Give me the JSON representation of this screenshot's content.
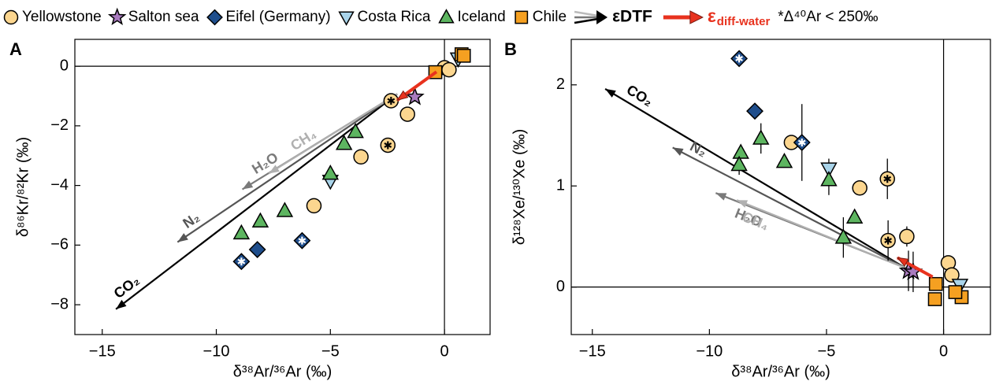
{
  "legend_extra": {
    "dtf": "εDTF",
    "diff_symbol": "ε",
    "diff_sub": "diff-water",
    "star_note": "*Δ⁴⁰Ar < 250‰"
  },
  "chart_data": [
    {
      "type": "scatter",
      "panel_label": "A",
      "xlabel": "δ³⁸Ar/³⁶Ar (‰)",
      "ylabel": "δ⁸⁶Kr/⁸²Kr (‰)",
      "xlim": [
        -16.2,
        2
      ],
      "ylim": [
        -9,
        0.9
      ],
      "xticks": [
        {
          "value": -15,
          "label": "−15"
        },
        {
          "value": -10,
          "label": "−10"
        },
        {
          "value": -5,
          "label": "−5"
        },
        0
      ],
      "yticks": [
        {
          "value": -8,
          "label": "−8"
        },
        {
          "value": -6,
          "label": "−6"
        },
        {
          "value": -4,
          "label": "−4"
        },
        {
          "value": -2,
          "label": "−2"
        },
        0
      ],
      "zero_lines": true,
      "arrows": [
        {
          "name": "CO₂",
          "color": "#000000",
          "x": [
            -2.07,
            -14.4
          ],
          "values": [
            -0.93,
            -8.15
          ]
        },
        {
          "name": "N₂",
          "color": "#555555",
          "x": [
            -2.07,
            -11.7
          ],
          "values": [
            -0.93,
            -5.9
          ]
        },
        {
          "name": "H₂O",
          "color": "#7a7a7a",
          "x": [
            -2.07,
            -8.86
          ],
          "values": [
            -0.93,
            -4.13
          ]
        },
        {
          "name": "CH₄",
          "color": "#b0b0b0",
          "x": [
            -2.07,
            -7.7
          ],
          "values": [
            -0.93,
            -3.6
          ]
        }
      ],
      "diff_arrow": {
        "color": "#e8321e",
        "x": [
          -0.35,
          -2.07
        ],
        "values": [
          -0.19,
          -1.14
        ]
      },
      "series": [
        {
          "name": "Yellowstone",
          "marker": "circle",
          "color": "#fcd68f",
          "x": [
            -2.34,
            -2.48,
            -1.62,
            -3.66,
            -5.72,
            0,
            0.2
          ],
          "values": [
            -1.16,
            -2.65,
            -1.61,
            -3.04,
            -4.68,
            -0.05,
            -0.12
          ],
          "starred": [
            true,
            true,
            false,
            false,
            false,
            false,
            false
          ]
        },
        {
          "name": "Salton sea",
          "marker": "star",
          "color": "#a97bbf",
          "x": [
            -1.3
          ],
          "values": [
            -1.03
          ],
          "starred": [
            false
          ]
        },
        {
          "name": "Eifel (Germany)",
          "marker": "diamond",
          "color": "#1f4e8c",
          "x": [
            -8.2,
            -8.9,
            -6.24
          ],
          "values": [
            -6.15,
            -6.55,
            -5.85
          ],
          "starred": [
            false,
            true,
            true
          ]
        },
        {
          "name": "Costa Rica",
          "marker": "tri-down",
          "color": "#a9d4ea",
          "x": [
            -5.0,
            0.6
          ],
          "values": [
            -3.85,
            0.25
          ],
          "starred": [
            false,
            false
          ]
        },
        {
          "name": "Iceland",
          "marker": "tri-up",
          "color": "#5db560",
          "x": [
            -3.9,
            -4.4,
            -5.0,
            -7.0,
            -8.07,
            -8.9
          ],
          "values": [
            -2.2,
            -2.6,
            -3.6,
            -4.85,
            -5.2,
            -5.6
          ],
          "starred": [
            false,
            false,
            false,
            false,
            false,
            false
          ]
        },
        {
          "name": "Chile",
          "marker": "square",
          "color": "#f5a021",
          "x": [
            -0.4,
            0.75,
            0.85
          ],
          "values": [
            -0.2,
            0.4,
            0.35
          ],
          "starred": [
            false,
            false,
            false
          ]
        }
      ]
    },
    {
      "type": "scatter",
      "panel_label": "B",
      "xlabel": "δ³⁸Ar/³⁶Ar (‰)",
      "ylabel": "δ¹²⁸Xe/¹³⁰Xe (‰)",
      "xlim": [
        -15.9,
        2
      ],
      "ylim": [
        -0.47,
        2.45
      ],
      "xticks": [
        {
          "value": -15,
          "label": "−15"
        },
        {
          "value": -10,
          "label": "−10"
        },
        {
          "value": -5,
          "label": "−5"
        },
        0
      ],
      "yticks": [
        0,
        1,
        2
      ],
      "zero_lines": true,
      "arrows": [
        {
          "name": "CO₂",
          "color": "#000000",
          "x": [
            -1.64,
            -14.45
          ],
          "values": [
            0.19,
            1.96
          ]
        },
        {
          "name": "N₂",
          "color": "#555555",
          "x": [
            -1.64,
            -11.57
          ],
          "values": [
            0.19,
            1.38
          ]
        },
        {
          "name": "H₂O",
          "color": "#7a7a7a",
          "x": [
            -1.64,
            -9.73
          ],
          "values": [
            0.19,
            0.93
          ]
        },
        {
          "name": "CH₄",
          "color": "#b0b0b0",
          "x": [
            -1.64,
            -8.83
          ],
          "values": [
            0.19,
            0.86
          ]
        }
      ],
      "diff_arrow": {
        "color": "#e8321e",
        "x": [
          -0.47,
          -1.97
        ],
        "values": [
          0.1,
          0.29
        ]
      },
      "series": [
        {
          "marker": "circle",
          "color": "#fcd68f",
          "x": [
            -6.5,
            -3.58,
            -2.4,
            -2.37,
            -1.57,
            0.2,
            0.35
          ],
          "values": [
            1.43,
            0.98,
            1.07,
            0.46,
            0.5,
            0.24,
            0.12
          ],
          "yerr": [
            null,
            null,
            0.2,
            0.2,
            0.1,
            null,
            null
          ],
          "starred": [
            false,
            false,
            true,
            true,
            false,
            false,
            false
          ]
        },
        {
          "marker": "star",
          "color": "#a97bbf",
          "x": [
            -1.5,
            -1.3
          ],
          "values": [
            0.16,
            0.15
          ],
          "yerr": [
            0.2,
            0.2
          ],
          "starred": [
            false,
            false
          ]
        },
        {
          "marker": "diamond",
          "color": "#1f4e8c",
          "x": [
            -8.73,
            -8.06,
            -6.05
          ],
          "values": [
            2.26,
            1.74,
            1.43
          ],
          "yerr": [
            null,
            null,
            0.38
          ],
          "starred": [
            true,
            false,
            true
          ]
        },
        {
          "marker": "tri-down",
          "color": "#a9d4ea",
          "x": [
            -4.9,
            0.7
          ],
          "values": [
            1.17,
            0.02
          ],
          "yerr": [
            0.1,
            null
          ],
          "starred": [
            false,
            false
          ]
        },
        {
          "marker": "tri-up",
          "color": "#5db560",
          "x": [
            -8.66,
            -8.73,
            -7.8,
            -6.8,
            -4.9,
            -3.8,
            -4.28
          ],
          "values": [
            1.33,
            1.21,
            1.47,
            1.24,
            1.06,
            0.69,
            0.49
          ],
          "yerr": [
            null,
            0.1,
            0.15,
            null,
            0.15,
            null,
            0.2
          ],
          "starred": [
            false,
            false,
            false,
            false,
            false,
            false,
            false
          ]
        },
        {
          "marker": "square",
          "color": "#f5a021",
          "x": [
            -0.33,
            -0.37,
            0.77,
            0.5
          ],
          "values": [
            0.03,
            -0.12,
            -0.1,
            -0.05
          ],
          "yerr": [
            null,
            null,
            null,
            null
          ],
          "starred": [
            false,
            false,
            false,
            false
          ]
        }
      ]
    }
  ]
}
